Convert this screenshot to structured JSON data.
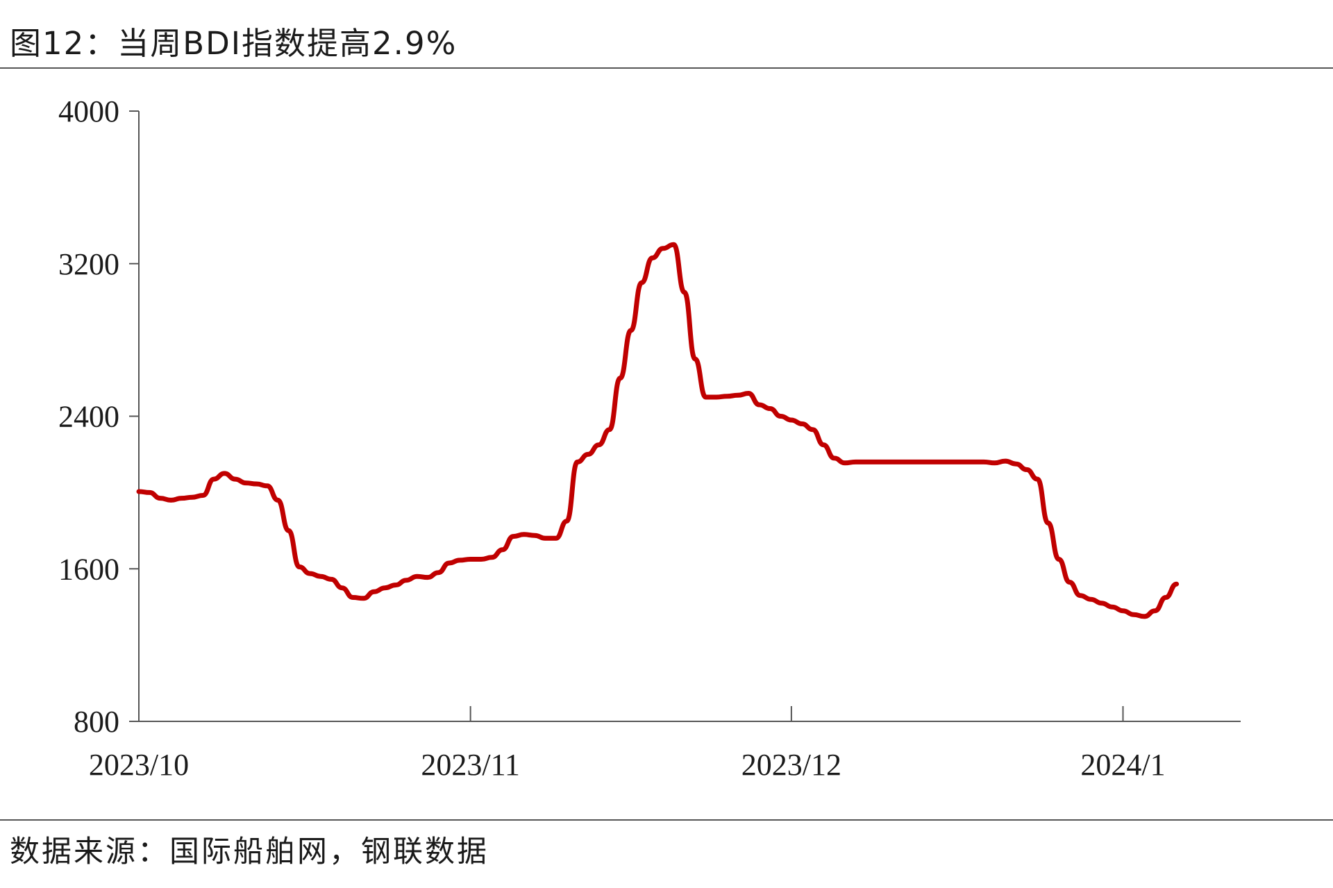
{
  "title": "图12：当周BDI指数提高2.9%",
  "source": "数据来源：国际船舶网，钢联数据",
  "colors": {
    "line": "#c00000",
    "axis": "#555555",
    "text": "#1a1a1a"
  },
  "chart_data": {
    "type": "line",
    "title": "图12：当周BDI指数提高2.9%",
    "xlabel": "",
    "ylabel": "",
    "ylim": [
      800,
      4000
    ],
    "yticks": [
      800,
      1600,
      2400,
      3200,
      4000
    ],
    "xlim": [
      "2023-10-01",
      "2024-01-12"
    ],
    "xticks": [
      {
        "date": "2023-10-01",
        "label": "2023/10"
      },
      {
        "date": "2023-11-01",
        "label": "2023/11"
      },
      {
        "date": "2023-12-01",
        "label": "2023/12"
      },
      {
        "date": "2024-01-01",
        "label": "2024/1"
      }
    ],
    "grid": false,
    "legend": "none",
    "series": [
      {
        "name": "",
        "x": [
          "2023-10-01",
          "2023-10-02",
          "2023-10-03",
          "2023-10-04",
          "2023-10-05",
          "2023-10-06",
          "2023-10-07",
          "2023-10-08",
          "2023-10-09",
          "2023-10-10",
          "2023-10-11",
          "2023-10-12",
          "2023-10-13",
          "2023-10-14",
          "2023-10-15",
          "2023-10-16",
          "2023-10-17",
          "2023-10-18",
          "2023-10-19",
          "2023-10-20",
          "2023-10-21",
          "2023-10-22",
          "2023-10-23",
          "2023-10-24",
          "2023-10-25",
          "2023-10-26",
          "2023-10-27",
          "2023-10-28",
          "2023-10-29",
          "2023-10-30",
          "2023-10-31",
          "2023-11-01",
          "2023-11-02",
          "2023-11-03",
          "2023-11-04",
          "2023-11-05",
          "2023-11-06",
          "2023-11-07",
          "2023-11-08",
          "2023-11-09",
          "2023-11-10",
          "2023-11-11",
          "2023-11-12",
          "2023-11-13",
          "2023-11-14",
          "2023-11-15",
          "2023-11-16",
          "2023-11-17",
          "2023-11-18",
          "2023-11-19",
          "2023-11-20",
          "2023-11-21",
          "2023-11-22",
          "2023-11-23",
          "2023-11-24",
          "2023-11-25",
          "2023-11-26",
          "2023-11-27",
          "2023-11-28",
          "2023-11-29",
          "2023-11-30",
          "2023-12-01",
          "2023-12-02",
          "2023-12-03",
          "2023-12-04",
          "2023-12-05",
          "2023-12-06",
          "2023-12-07",
          "2023-12-08",
          "2023-12-09",
          "2023-12-10",
          "2023-12-11",
          "2023-12-12",
          "2023-12-13",
          "2023-12-14",
          "2023-12-15",
          "2023-12-16",
          "2023-12-17",
          "2023-12-18",
          "2023-12-19",
          "2023-12-20",
          "2023-12-21",
          "2023-12-22",
          "2023-12-23",
          "2023-12-24",
          "2023-12-25",
          "2023-12-26",
          "2023-12-27",
          "2023-12-28",
          "2023-12-29",
          "2023-12-30",
          "2023-12-31",
          "2024-01-01",
          "2024-01-02",
          "2024-01-03",
          "2024-01-04",
          "2024-01-05",
          "2024-01-06",
          "2024-01-07",
          "2024-01-08",
          "2024-01-09",
          "2024-01-10",
          "2024-01-11",
          "2024-01-12"
        ],
        "values": [
          2005,
          2000,
          1970,
          1960,
          1970,
          1975,
          1985,
          2070,
          2100,
          2070,
          2050,
          2045,
          2035,
          1960,
          1800,
          1610,
          1575,
          1560,
          1545,
          1500,
          1450,
          1445,
          1480,
          1500,
          1515,
          1540,
          1560,
          1555,
          1580,
          1630,
          1645,
          1650,
          1650,
          1660,
          1700,
          1770,
          1780,
          1775,
          1760,
          1760,
          1850,
          2160,
          2200,
          2250,
          2330,
          2600,
          2850,
          3100,
          3230,
          3280,
          3300,
          3050,
          2700,
          2500,
          2500,
          2505,
          2510,
          2520,
          2460,
          2440,
          2400,
          2380,
          2360,
          2330,
          2250,
          2180,
          2155,
          2160,
          2160,
          2160,
          2160,
          2160,
          2160,
          2160,
          2160,
          2160,
          2160,
          2160,
          2160,
          2160,
          2155,
          2165,
          2150,
          2120,
          2070,
          1840,
          1650,
          1530,
          1460,
          1440,
          1420,
          1400,
          1380,
          1360,
          1350,
          1380,
          1450,
          1520,
          null,
          null,
          null,
          null,
          null,
          null
        ],
        "values_note_removed": true
      }
    ]
  }
}
